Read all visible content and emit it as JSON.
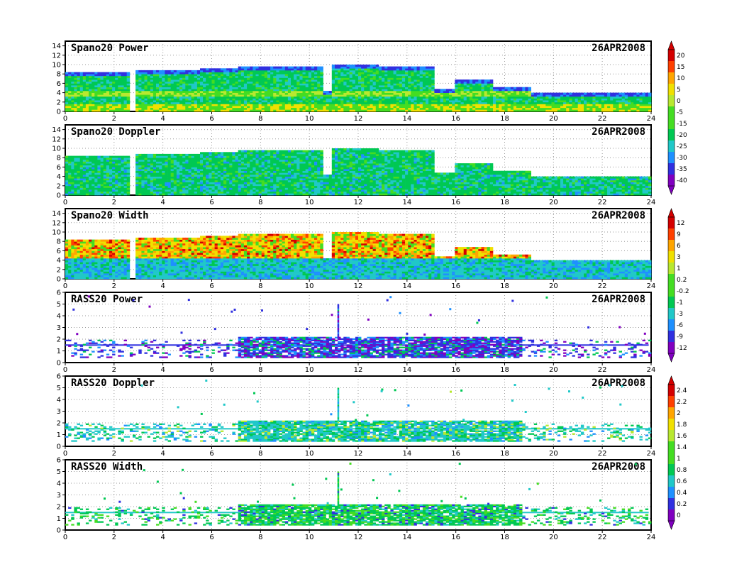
{
  "colors": {
    "scale": [
      "#8000c0",
      "#3030e0",
      "#1e90ff",
      "#20c8c8",
      "#00c853",
      "#44dd22",
      "#b8e830",
      "#f0e000",
      "#ffa500",
      "#ff4000",
      "#d40000"
    ]
  },
  "chart_data": [
    {
      "type": "heatmap",
      "title": "Spano20 Power",
      "date": "26APR2008",
      "xlabel": "",
      "ylabel": "",
      "xlim": [
        0,
        24
      ],
      "ylim": [
        0,
        15
      ],
      "x_ticks": [
        "0",
        "2",
        "4",
        "6",
        "8",
        "10",
        "12",
        "14",
        "16",
        "18",
        "20",
        "22",
        "24"
      ],
      "y_ticks": [
        "0",
        "2",
        "4",
        "6",
        "8",
        "10",
        "12",
        "14"
      ],
      "grid": true,
      "colorbar": [
        "20",
        "15",
        "10",
        "5",
        "0",
        "-5",
        "-15",
        "-20",
        "-25",
        "-30",
        "-35",
        "-40"
      ]
    },
    {
      "type": "heatmap",
      "title": "Spano20 Doppler",
      "date": "26APR2008",
      "xlabel": "",
      "ylabel": "",
      "xlim": [
        0,
        24
      ],
      "ylim": [
        0,
        15
      ],
      "x_ticks": [
        "0",
        "2",
        "4",
        "6",
        "8",
        "10",
        "12",
        "14",
        "16",
        "18",
        "20",
        "22",
        "24"
      ],
      "y_ticks": [
        "0",
        "2",
        "4",
        "6",
        "8",
        "10",
        "12",
        "14"
      ],
      "grid": true
    },
    {
      "type": "heatmap",
      "title": "Spano20 Width",
      "date": "26APR2008",
      "xlabel": "",
      "ylabel": "",
      "xlim": [
        0,
        24
      ],
      "ylim": [
        0,
        15
      ],
      "x_ticks": [
        "0",
        "2",
        "4",
        "6",
        "8",
        "10",
        "12",
        "14",
        "16",
        "18",
        "20",
        "22",
        "24"
      ],
      "y_ticks": [
        "0",
        "2",
        "4",
        "6",
        "8",
        "10",
        "12",
        "14"
      ],
      "grid": true,
      "colorbar": [
        "12",
        "9",
        "6",
        "3",
        "1",
        "0.2",
        "-0.2",
        "-1",
        "-3",
        "-6",
        "-9",
        "-12"
      ]
    },
    {
      "type": "heatmap",
      "title": "RASS20 Power",
      "date": "26APR2008",
      "xlabel": "",
      "ylabel": "",
      "xlim": [
        0,
        24
      ],
      "ylim": [
        0,
        6
      ],
      "x_ticks": [
        "0",
        "2",
        "4",
        "6",
        "8",
        "10",
        "12",
        "14",
        "16",
        "18",
        "20",
        "22",
        "24"
      ],
      "y_ticks": [
        "0",
        "1",
        "2",
        "3",
        "4",
        "5",
        "6"
      ],
      "grid": true
    },
    {
      "type": "heatmap",
      "title": "RASS20 Doppler",
      "date": "26APR2008",
      "xlabel": "",
      "ylabel": "",
      "xlim": [
        0,
        24
      ],
      "ylim": [
        0,
        6
      ],
      "x_ticks": [
        "0",
        "2",
        "4",
        "6",
        "8",
        "10",
        "12",
        "14",
        "16",
        "18",
        "20",
        "22",
        "24"
      ],
      "y_ticks": [
        "0",
        "1",
        "2",
        "3",
        "4",
        "5",
        "6"
      ],
      "grid": true,
      "colorbar": [
        "2.4",
        "2.2",
        "2",
        "1.8",
        "1.6",
        "1.4",
        "1",
        "0.8",
        "0.6",
        "0.4",
        "0.2",
        "0"
      ]
    },
    {
      "type": "heatmap",
      "title": "RASS20 Width",
      "date": "26APR2008",
      "xlabel": "",
      "ylabel": "",
      "xlim": [
        0,
        24
      ],
      "ylim": [
        0,
        6
      ],
      "x_ticks": [
        "0",
        "2",
        "4",
        "6",
        "8",
        "10",
        "12",
        "14",
        "16",
        "18",
        "20",
        "22",
        "24"
      ],
      "y_ticks": [
        "0",
        "1",
        "2",
        "3",
        "4",
        "5",
        "6"
      ],
      "grid": true
    }
  ]
}
